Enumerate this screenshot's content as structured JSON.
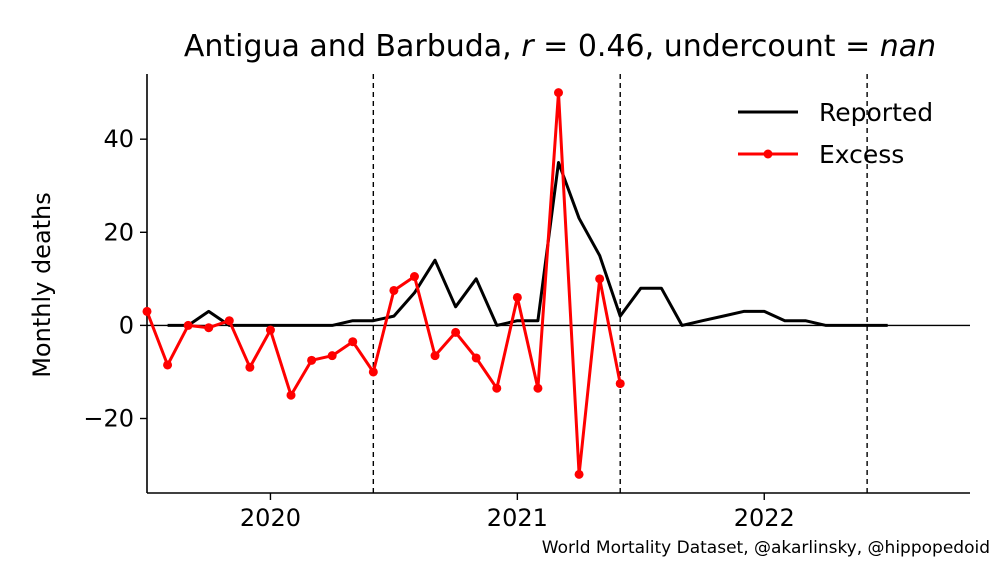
{
  "chart_data": {
    "type": "line",
    "title_parts": [
      "Antigua and Barbuda, ",
      "r",
      " = 0.46, undercount = ",
      "nan"
    ],
    "ylabel": "Monthly deaths",
    "xlabel": "",
    "xlim": [
      "2019-07",
      "2022-11"
    ],
    "ylim": [
      -36,
      54
    ],
    "yticks": [
      40,
      20,
      0,
      -20
    ],
    "ytick_labels": [
      "40",
      "20",
      "0",
      "−20"
    ],
    "xticks": [
      "2020-01",
      "2021-01",
      "2022-01"
    ],
    "xtick_labels": [
      "2020",
      "2021",
      "2022"
    ],
    "vlines": [
      "2020-06",
      "2021-06",
      "2022-06"
    ],
    "zero_line": true,
    "grid": false,
    "legend_position": "top-right",
    "series": [
      {
        "name": "Reported",
        "color": "#000000",
        "markers": false,
        "x": [
          "2019-08",
          "2019-09",
          "2019-10",
          "2019-11",
          "2019-12",
          "2020-01",
          "2020-02",
          "2020-03",
          "2020-04",
          "2020-05",
          "2020-06",
          "2020-07",
          "2020-08",
          "2020-09",
          "2020-10",
          "2020-11",
          "2020-12",
          "2021-01",
          "2021-02",
          "2021-03",
          "2021-04",
          "2021-05",
          "2021-06",
          "2021-07",
          "2021-08",
          "2021-09",
          "2021-10",
          "2021-11",
          "2021-12",
          "2022-01",
          "2022-02",
          "2022-03",
          "2022-04",
          "2022-05",
          "2022-06",
          "2022-07"
        ],
        "values": [
          0,
          0,
          3,
          0,
          0,
          0,
          0,
          0,
          0,
          1,
          1,
          2,
          7,
          14,
          4,
          10,
          0,
          1,
          1,
          35,
          23,
          15,
          2,
          8,
          8,
          0,
          1,
          2,
          3,
          3,
          1,
          1,
          0,
          0,
          0,
          0
        ]
      },
      {
        "name": "Excess",
        "color": "#ff0000",
        "markers": true,
        "x": [
          "2019-07",
          "2019-08",
          "2019-09",
          "2019-10",
          "2019-11",
          "2019-12",
          "2020-01",
          "2020-02",
          "2020-03",
          "2020-04",
          "2020-05",
          "2020-06",
          "2020-07",
          "2020-08",
          "2020-09",
          "2020-10",
          "2020-11",
          "2020-12",
          "2021-01",
          "2021-02",
          "2021-03",
          "2021-04",
          "2021-05",
          "2021-06"
        ],
        "values": [
          3,
          -8.5,
          0,
          -0.5,
          1,
          -9,
          -1,
          -15,
          -7.5,
          -6.5,
          -3.5,
          -10,
          7.5,
          10.5,
          -6.5,
          -1.5,
          -7,
          -13.5,
          6,
          -13.5,
          50,
          -32,
          10,
          -12.5
        ]
      }
    ]
  },
  "footer": {
    "credit": "World Mortality Dataset, @akarlinsky, @hippopedoid"
  }
}
